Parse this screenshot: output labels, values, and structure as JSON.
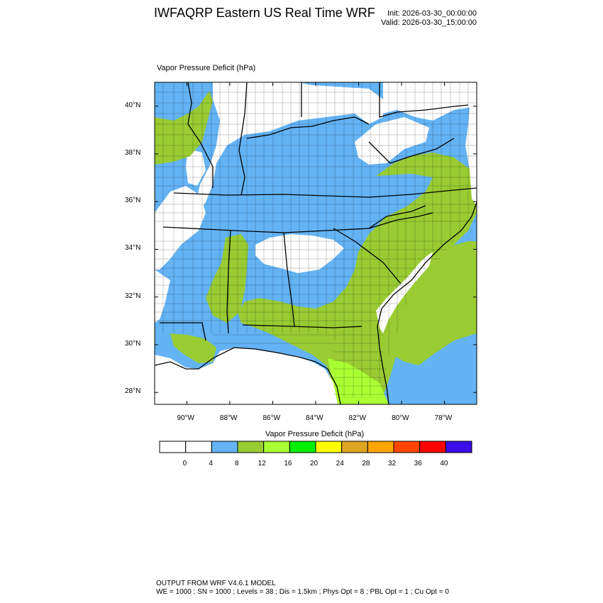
{
  "header": {
    "title": "IWFAQRP Eastern US Real Time WRF",
    "init": "Init: 2026-03-30_00:00:00",
    "valid": "Valid: 2026-03-30_15:00:00"
  },
  "map": {
    "field_label": "Vapor Pressure Deficit   (hPa)",
    "lat_ticks": [
      "40°N",
      "38°N",
      "36°N",
      "34°N",
      "32°N",
      "30°N",
      "28°N"
    ],
    "lon_ticks": [
      "90°W",
      "88°W",
      "86°W",
      "84°W",
      "82°W",
      "80°W",
      "78°W"
    ],
    "lat_values": [
      40,
      38,
      36,
      34,
      32,
      30,
      28
    ],
    "lon_values": [
      -90,
      -88,
      -86,
      -84,
      -82,
      -80,
      -78
    ],
    "extent": {
      "lon_min": -91.5,
      "lon_max": -76.5,
      "lat_min": 27.5,
      "lat_max": 41.0
    }
  },
  "colorbar": {
    "title": "Vapor Pressure Deficit  (hPa)",
    "labels": [
      "0",
      "4",
      "8",
      "12",
      "16",
      "20",
      "24",
      "28",
      "32",
      "36",
      "40"
    ],
    "colors": [
      "#ffffff",
      "#ffffff",
      "#63b3f5",
      "#99cc33",
      "#aaff33",
      "#00ee00",
      "#ffff00",
      "#dda520",
      "#ffa500",
      "#ff4500",
      "#ff0000",
      "#3b0eea"
    ]
  },
  "footer": {
    "line1": "OUTPUT FROM WRF V4.6.1 MODEL",
    "line2": "WE = 1000 ; SN = 1000 ; Levels = 38 ; Dis = 1.5km ; Phys Opt = 8 ; PBL Opt = 1 ; Cu Opt = 0"
  },
  "colors": {
    "water": "#ffffff",
    "vpd_4_8": "#63b3f5",
    "vpd_8_12": "#99cc33",
    "vpd_12_16": "#aaff33",
    "state_border": "#000000"
  }
}
